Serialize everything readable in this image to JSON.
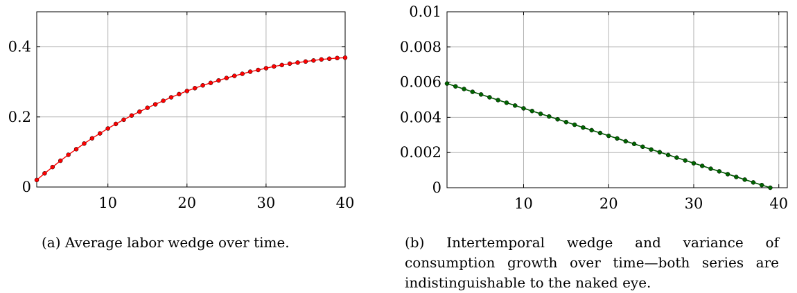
{
  "charts": [
    {
      "type": "line",
      "xlim": [
        1,
        40
      ],
      "ylim": [
        0,
        0.5
      ],
      "x_ticks": [
        10,
        20,
        30,
        40
      ],
      "x_tick_labels": [
        "10",
        "20",
        "30",
        "40"
      ],
      "y_ticks": [
        0,
        0.2,
        0.4
      ],
      "y_tick_labels": [
        "0",
        "0.2",
        "0.4"
      ],
      "grid": true,
      "series": [
        {
          "color": "#ff0000",
          "marker": "circle",
          "x": [
            1,
            2,
            3,
            4,
            5,
            6,
            7,
            8,
            9,
            10,
            11,
            12,
            13,
            14,
            15,
            16,
            17,
            18,
            19,
            20,
            21,
            22,
            23,
            24,
            25,
            26,
            27,
            28,
            29,
            30,
            31,
            32,
            33,
            34,
            35,
            36,
            37,
            38,
            39,
            40
          ],
          "y": [
            0.02,
            0.039,
            0.057,
            0.075,
            0.092,
            0.108,
            0.124,
            0.139,
            0.153,
            0.167,
            0.18,
            0.192,
            0.204,
            0.215,
            0.226,
            0.236,
            0.246,
            0.256,
            0.265,
            0.274,
            0.282,
            0.29,
            0.297,
            0.304,
            0.311,
            0.317,
            0.323,
            0.329,
            0.334,
            0.339,
            0.344,
            0.348,
            0.352,
            0.355,
            0.358,
            0.361,
            0.364,
            0.366,
            0.368,
            0.369
          ]
        }
      ],
      "caption": "(a) Average labor wedge over time."
    },
    {
      "type": "line",
      "xlim": [
        1,
        41
      ],
      "ylim": [
        0,
        0.01
      ],
      "x_ticks": [
        10,
        20,
        30,
        40
      ],
      "x_tick_labels": [
        "10",
        "20",
        "30",
        "40"
      ],
      "y_ticks": [
        0,
        0.002,
        0.004,
        0.006,
        0.008,
        0.01
      ],
      "y_tick_labels": [
        "0",
        "0.002",
        "0.004",
        "0.006",
        "0.008",
        "0.01"
      ],
      "grid": true,
      "series": [
        {
          "color": "#006400",
          "marker": "circle",
          "x": [
            1,
            2,
            3,
            4,
            5,
            6,
            7,
            8,
            9,
            10,
            11,
            12,
            13,
            14,
            15,
            16,
            17,
            18,
            19,
            20,
            21,
            22,
            23,
            24,
            25,
            26,
            27,
            28,
            29,
            30,
            31,
            32,
            33,
            34,
            35,
            36,
            37,
            38,
            39
          ],
          "y": [
            0.00592,
            0.00576,
            0.00561,
            0.00545,
            0.0053,
            0.00514,
            0.00498,
            0.00483,
            0.00467,
            0.00451,
            0.00436,
            0.0042,
            0.00405,
            0.00389,
            0.00373,
            0.00358,
            0.00342,
            0.00327,
            0.00311,
            0.00295,
            0.0028,
            0.00264,
            0.00249,
            0.00233,
            0.00217,
            0.00202,
            0.00186,
            0.00171,
            0.00155,
            0.00139,
            0.00124,
            0.00108,
            0.00093,
            0.00077,
            0.00061,
            0.00046,
            0.0003,
            0.00015,
            0.0
          ]
        },
        {
          "color": "#000000",
          "marker": "none",
          "x": [
            1,
            39
          ],
          "y": [
            0.00592,
            0.0
          ]
        }
      ],
      "caption": "(b) Intertemporal wedge and variance of consumption growth over time—both series are indistinguishable to the naked eye."
    }
  ]
}
